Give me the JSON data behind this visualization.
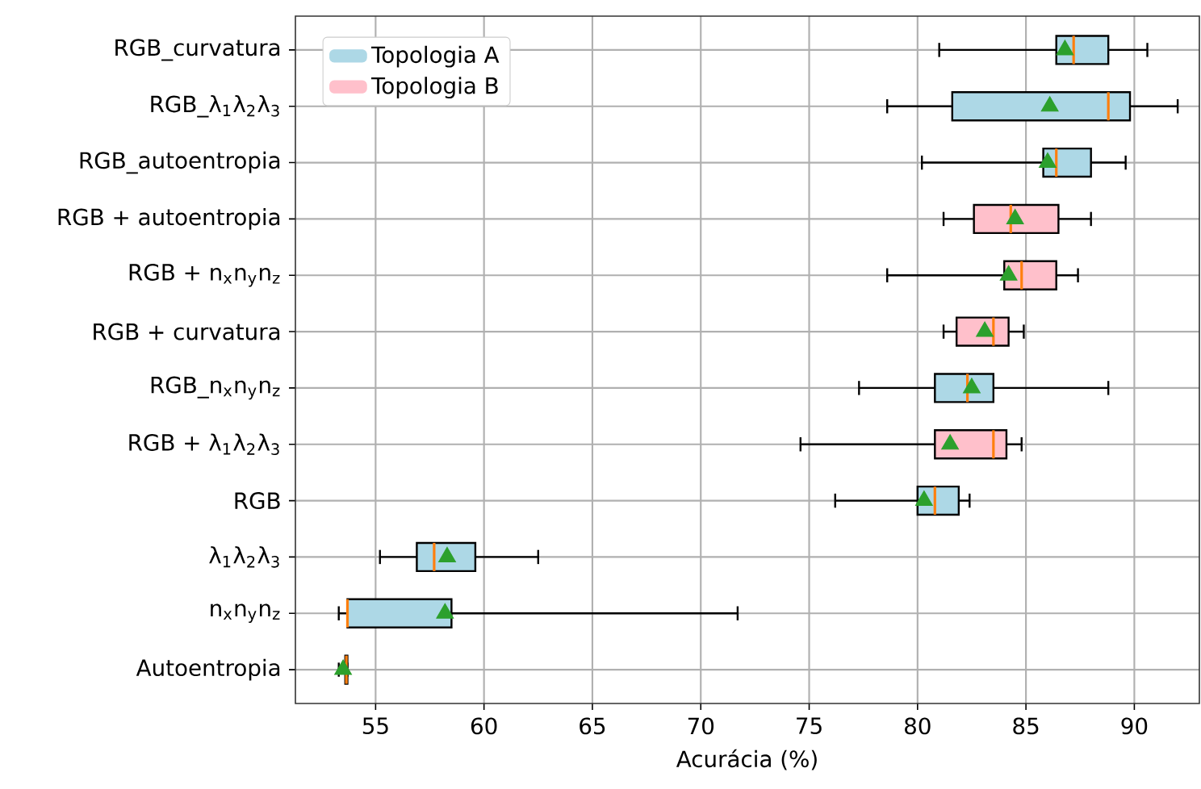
{
  "chart_data": {
    "type": "box",
    "orientation": "horizontal",
    "xlabel": "Acurácia (%)",
    "categories": [
      "RGB_curvatura",
      "RGB_λ$_{1}$λ$_{2}$λ$_{3}$",
      "RGB_autoentropia",
      "RGB + autoentropia",
      "RGB + n$_{x}$n$_{y}$n$_{z}$",
      "RGB + curvatura",
      "RGB_n$_{x}$n$_{y}$n$_{z}$",
      "RGB + λ$_{1}$λ$_{2}$λ$_{3}$",
      "RGB",
      "λ$_{1}$λ$_{2}$λ$_{3}$",
      "n$_{x}$n$_{y}$n$_{z}$",
      "Autoentropia"
    ],
    "xlim": [
      51.3,
      93.0
    ],
    "xticks": [
      55,
      60,
      65,
      70,
      75,
      80,
      85,
      90
    ],
    "grid": true,
    "legend": "top left",
    "series": [
      {
        "name": "Topologia A",
        "color": "#add8e6",
        "boxes": [
          {
            "low": 81.0,
            "q1": 86.4,
            "median": 87.2,
            "q3": 88.8,
            "high": 90.6,
            "mean": 86.8
          },
          {
            "low": 78.6,
            "q1": 81.6,
            "median": 88.8,
            "q3": 89.8,
            "high": 92.0,
            "mean": 86.1
          },
          {
            "low": 80.2,
            "q1": 85.8,
            "median": 86.4,
            "q3": 88.0,
            "high": 89.6,
            "mean": 86.0
          },
          null,
          null,
          null,
          {
            "low": 77.3,
            "q1": 80.8,
            "median": 82.3,
            "q3": 83.5,
            "high": 88.8,
            "mean": 82.5
          },
          null,
          {
            "low": 76.2,
            "q1": 80.0,
            "median": 80.8,
            "q3": 81.9,
            "high": 82.4,
            "mean": 80.3
          },
          {
            "low": 55.2,
            "q1": 56.9,
            "median": 57.7,
            "q3": 59.6,
            "high": 62.5,
            "mean": 58.3
          },
          {
            "low": 53.3,
            "q1": 53.7,
            "median": 53.7,
            "q3": 58.5,
            "high": 71.7,
            "mean": 58.2
          },
          {
            "low": 53.3,
            "q1": 53.6,
            "median": 53.65,
            "q3": 53.7,
            "high": 53.7,
            "mean": 53.5
          }
        ]
      },
      {
        "name": "Topologia B",
        "color": "#ffc0cb",
        "boxes": [
          null,
          null,
          null,
          {
            "low": 81.2,
            "q1": 82.6,
            "median": 84.3,
            "q3": 86.5,
            "high": 88.0,
            "mean": 84.5
          },
          {
            "low": 78.6,
            "q1": 84.0,
            "median": 84.8,
            "q3": 86.4,
            "high": 87.4,
            "mean": 84.2
          },
          {
            "low": 81.2,
            "q1": 81.8,
            "median": 83.5,
            "q3": 84.2,
            "high": 84.9,
            "mean": 83.1
          },
          null,
          {
            "low": 74.6,
            "q1": 80.8,
            "median": 83.5,
            "q3": 84.1,
            "high": 84.8,
            "mean": 81.5
          },
          null,
          null,
          null,
          null
        ]
      }
    ]
  }
}
